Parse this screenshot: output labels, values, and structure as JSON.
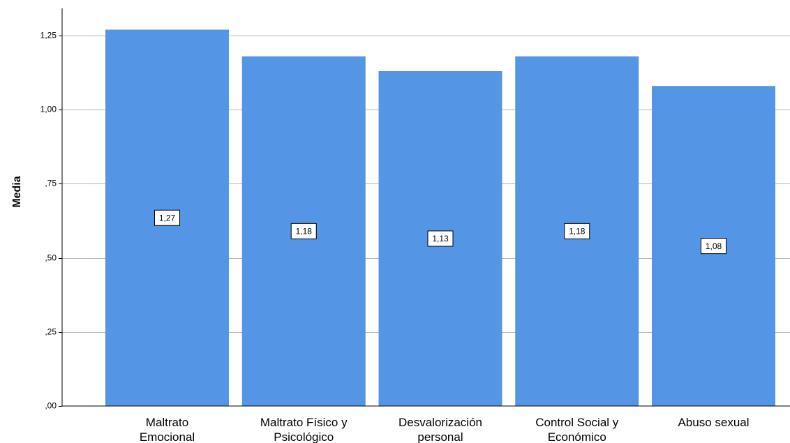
{
  "chart_data": {
    "type": "bar",
    "categories": [
      [
        "Maltrato",
        "Emocional"
      ],
      [
        "Maltrato Físico y",
        "Psicológico"
      ],
      [
        "Desvalorización",
        "personal"
      ],
      [
        "Control Social y",
        "Económico"
      ],
      [
        "Abuso sexual"
      ]
    ],
    "values": [
      1.27,
      1.18,
      1.13,
      1.18,
      1.08
    ],
    "data_labels": [
      "1,27",
      "1,18",
      "1,13",
      "1,18",
      "1,08"
    ],
    "ylabel": "Media",
    "xlabel": "",
    "ylim": [
      0,
      1.35
    ],
    "yticks": [
      0,
      0.25,
      0.5,
      0.75,
      1.0,
      1.25
    ],
    "ytick_labels": [
      ",00",
      ",25",
      ",50",
      ",75",
      "1,00",
      "1,25"
    ],
    "grid": true,
    "bar_color": "#5595e5",
    "grid_color": "#b5b5b5"
  }
}
